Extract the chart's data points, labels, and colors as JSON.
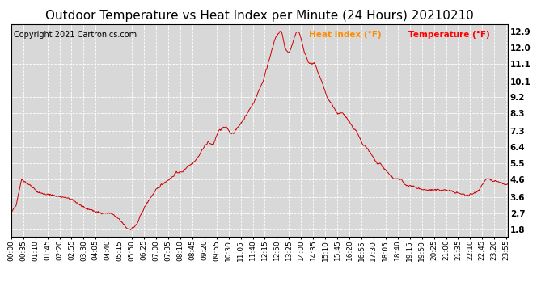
{
  "title": "Outdoor Temperature vs Heat Index per Minute (24 Hours) 20210210",
  "copyright": "Copyright 2021 Cartronics.com",
  "legend_heat": "Heat Index (°F)",
  "legend_temp": "Temperature (°F)",
  "legend_heat_color": "#FF8C00",
  "legend_temp_color": "#FF0000",
  "line_color": "#CC0000",
  "yticks": [
    1.8,
    2.7,
    3.6,
    4.6,
    5.5,
    6.4,
    7.3,
    8.3,
    9.2,
    10.1,
    11.1,
    12.0,
    12.9
  ],
  "ylim": [
    1.4,
    13.3
  ],
  "plot_bg_color": "#D8D8D8",
  "outer_bg_color": "#FFFFFF",
  "grid_color": "#FFFFFF",
  "title_fontsize": 11,
  "copyright_fontsize": 7,
  "tick_fontsize": 6.5,
  "ylabel_right_fontsize": 7.5
}
